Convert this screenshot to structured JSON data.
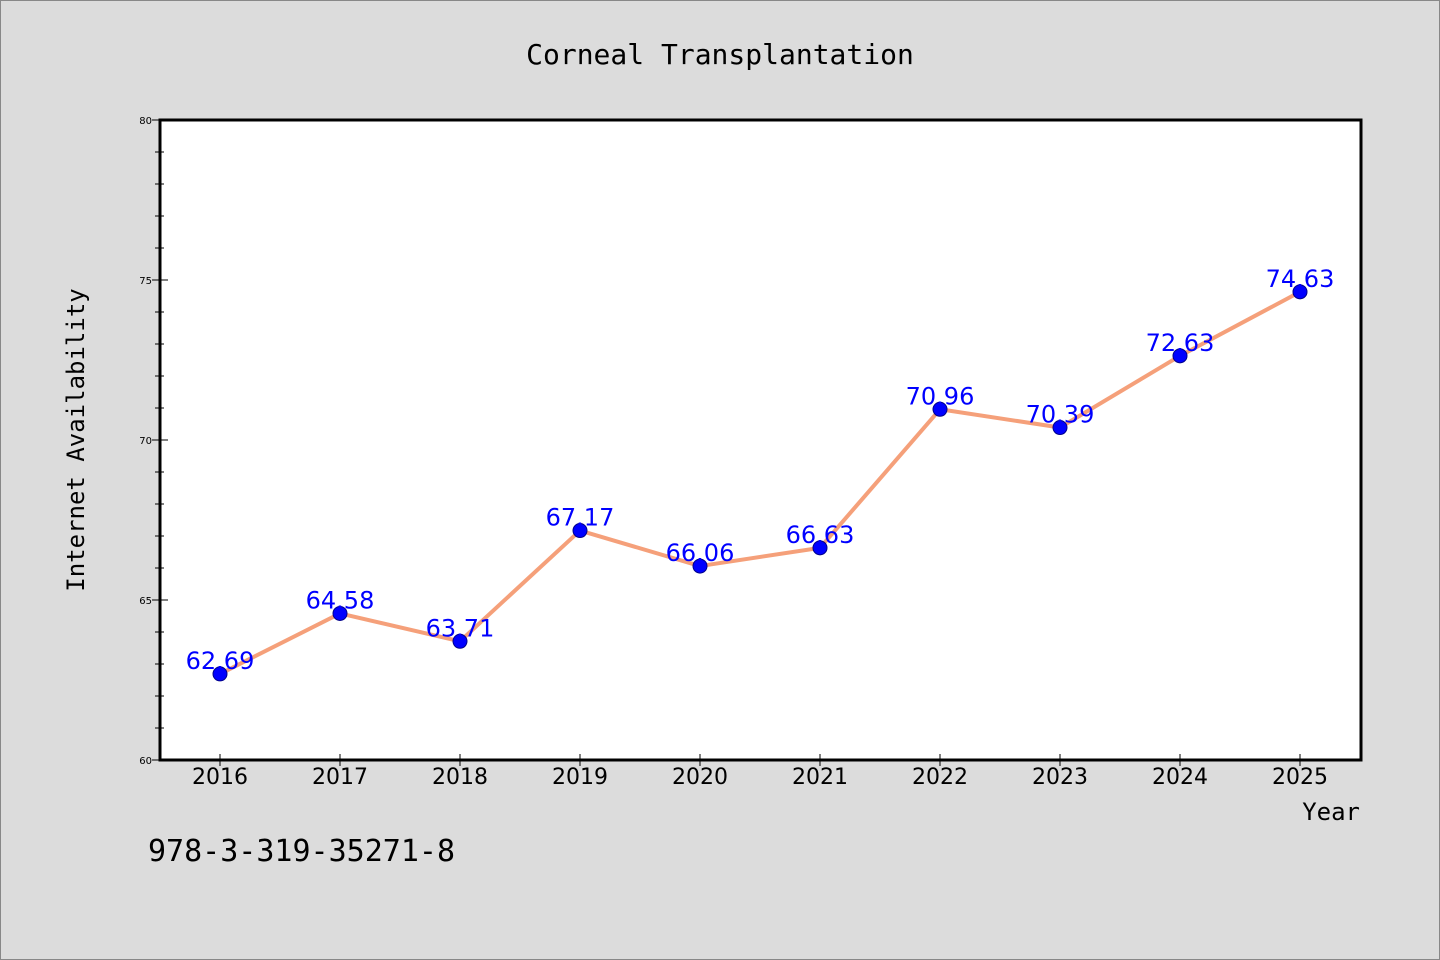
{
  "colors": {
    "background": "#dcdcdc",
    "plot_background": "#ffffff",
    "line": "#f5a07a",
    "marker": "#0000ff",
    "marker_edge": "#00008b",
    "data_label": "#0000ff"
  },
  "note": "978-3-319-35271-8",
  "chart_data": {
    "type": "line",
    "title": "Corneal Transplantation",
    "xlabel": "Year",
    "ylabel": "Internet Availability",
    "categories": [
      "2016",
      "2017",
      "2018",
      "2019",
      "2020",
      "2021",
      "2022",
      "2023",
      "2024",
      "2025"
    ],
    "series": [
      {
        "values": [
          62.69,
          64.58,
          63.71,
          67.17,
          66.06,
          66.63,
          70.96,
          70.39,
          72.63,
          74.63
        ],
        "labels": [
          "62.69",
          "64.58",
          "63.71",
          "67.17",
          "66.06",
          "66.63",
          "70.96",
          "70.39",
          "72.63",
          "74.63"
        ]
      }
    ],
    "ylim": [
      60,
      80
    ],
    "yticks": [
      "60",
      "65",
      "70",
      "75",
      "80"
    ],
    "grid": false,
    "legend": "none"
  }
}
